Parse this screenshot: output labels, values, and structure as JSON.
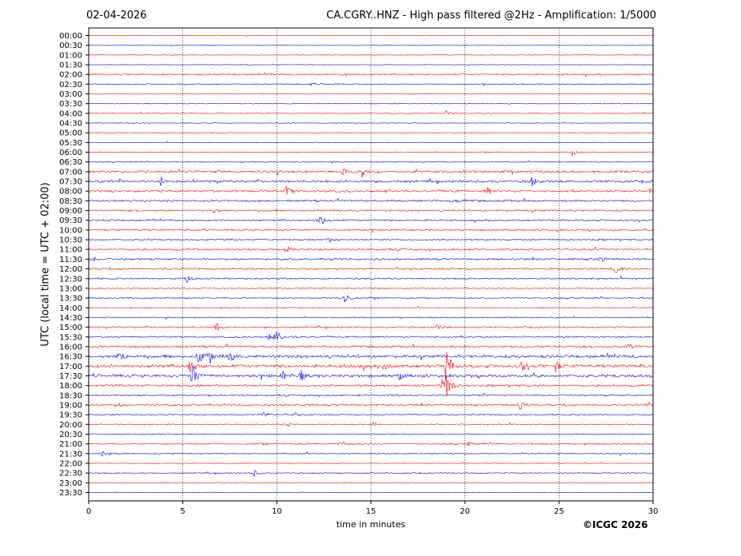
{
  "header": {
    "date": "02-04-2026",
    "title": "CA.CGRY..HNZ - High pass filtered @2Hz - Amplification: 1/5000"
  },
  "footer": {
    "copyright": "©ICGC 2026"
  },
  "chart_data": {
    "type": "line",
    "ylabel": "UTC (local time = UTC + 02:00)",
    "xlabel": "time in minutes",
    "xlim": [
      0,
      30
    ],
    "x_ticks": [
      "0",
      "5",
      "10",
      "15",
      "20",
      "25",
      "30"
    ],
    "grid": "vertical dotted at 5-minute intervals",
    "row_labels": [
      "00:00",
      "00:30",
      "01:00",
      "01:30",
      "02:00",
      "02:30",
      "03:00",
      "03:30",
      "04:00",
      "04:30",
      "05:00",
      "05:30",
      "06:00",
      "06:30",
      "07:00",
      "07:30",
      "08:00",
      "08:30",
      "09:00",
      "09:30",
      "10:00",
      "10:30",
      "11:00",
      "11:30",
      "12:00",
      "12:30",
      "13:00",
      "13:30",
      "14:00",
      "14:30",
      "15:00",
      "15:30",
      "16:00",
      "16:30",
      "17:00",
      "17:30",
      "18:00",
      "18:30",
      "19:00",
      "19:30",
      "20:00",
      "20:30",
      "21:00",
      "21:30",
      "22:00",
      "22:30",
      "23:00",
      "23:30"
    ],
    "row_colors": [
      "#ff0000",
      "#0000ff"
    ],
    "noise_amplitude": [
      0.5,
      0.5,
      0.5,
      0.5,
      1.2,
      0.8,
      0.5,
      0.5,
      0.6,
      0.5,
      0.5,
      0.5,
      0.7,
      0.8,
      1.8,
      1.8,
      1.6,
      1.5,
      1.3,
      1.3,
      1.3,
      1.2,
      1.4,
      1.4,
      1.4,
      1.2,
      1.0,
      1.0,
      0.8,
      0.8,
      1.2,
      1.2,
      1.6,
      2.2,
      2.4,
      2.2,
      1.6,
      1.2,
      1.4,
      1.0,
      0.8,
      0.8,
      1.2,
      0.9,
      0.6,
      0.8,
      0.6,
      0.5
    ],
    "events": [
      {
        "row": 4,
        "x": 13.5,
        "amp": 3
      },
      {
        "row": 5,
        "x": 11.8,
        "amp": 2
      },
      {
        "row": 8,
        "x": 19.0,
        "amp": 4
      },
      {
        "row": 12,
        "x": 25.7,
        "amp": 5
      },
      {
        "row": 14,
        "x": 14.5,
        "amp": 9
      },
      {
        "row": 14,
        "x": 13.5,
        "amp": 5
      },
      {
        "row": 15,
        "x": 3.8,
        "amp": 7
      },
      {
        "row": 15,
        "x": 23.5,
        "amp": 8
      },
      {
        "row": 16,
        "x": 10.5,
        "amp": 7
      },
      {
        "row": 16,
        "x": 21.2,
        "amp": 5
      },
      {
        "row": 16,
        "x": 29.8,
        "amp": 4
      },
      {
        "row": 17,
        "x": 19.5,
        "amp": 3
      },
      {
        "row": 18,
        "x": 6.7,
        "amp": 4
      },
      {
        "row": 19,
        "x": 12.3,
        "amp": 9
      },
      {
        "row": 21,
        "x": 12.8,
        "amp": 4
      },
      {
        "row": 22,
        "x": 10.5,
        "amp": 4
      },
      {
        "row": 23,
        "x": 0.2,
        "amp": 4
      },
      {
        "row": 23,
        "x": 27.2,
        "amp": 4
      },
      {
        "row": 24,
        "x": 28.0,
        "amp": 8
      },
      {
        "row": 25,
        "x": 5.2,
        "amp": 5
      },
      {
        "row": 27,
        "x": 13.6,
        "amp": 9
      },
      {
        "row": 30,
        "x": 6.8,
        "amp": 6
      },
      {
        "row": 30,
        "x": 18.5,
        "amp": 4
      },
      {
        "row": 31,
        "x": 9.6,
        "amp": 8
      },
      {
        "row": 31,
        "x": 10.0,
        "amp": 7
      },
      {
        "row": 32,
        "x": 28.7,
        "amp": 6
      },
      {
        "row": 33,
        "x": 1.6,
        "amp": 10
      },
      {
        "row": 33,
        "x": 5.8,
        "amp": 13
      },
      {
        "row": 33,
        "x": 6.4,
        "amp": 10
      },
      {
        "row": 33,
        "x": 7.5,
        "amp": 9
      },
      {
        "row": 34,
        "x": 5.4,
        "amp": 13
      },
      {
        "row": 34,
        "x": 15.7,
        "amp": 8
      },
      {
        "row": 34,
        "x": 19.0,
        "amp": 25
      },
      {
        "row": 34,
        "x": 23.0,
        "amp": 8
      },
      {
        "row": 34,
        "x": 24.8,
        "amp": 7
      },
      {
        "row": 35,
        "x": 5.5,
        "amp": 18
      },
      {
        "row": 35,
        "x": 10.3,
        "amp": 7
      },
      {
        "row": 35,
        "x": 11.3,
        "amp": 7
      },
      {
        "row": 35,
        "x": 16.5,
        "amp": 5
      },
      {
        "row": 36,
        "x": 18.8,
        "amp": 12
      },
      {
        "row": 36,
        "x": 19.0,
        "amp": 20
      },
      {
        "row": 38,
        "x": 1.5,
        "amp": 4
      },
      {
        "row": 38,
        "x": 22.9,
        "amp": 8
      },
      {
        "row": 38,
        "x": 29.7,
        "amp": 4
      },
      {
        "row": 39,
        "x": 9.3,
        "amp": 5
      },
      {
        "row": 39,
        "x": 11.0,
        "amp": 3
      },
      {
        "row": 40,
        "x": 10.6,
        "amp": 4
      },
      {
        "row": 40,
        "x": 15.1,
        "amp": 3
      },
      {
        "row": 42,
        "x": 13.5,
        "amp": 3
      },
      {
        "row": 42,
        "x": 20.2,
        "amp": 4
      },
      {
        "row": 43,
        "x": 0.7,
        "amp": 4
      },
      {
        "row": 45,
        "x": 8.8,
        "amp": 4
      }
    ]
  }
}
